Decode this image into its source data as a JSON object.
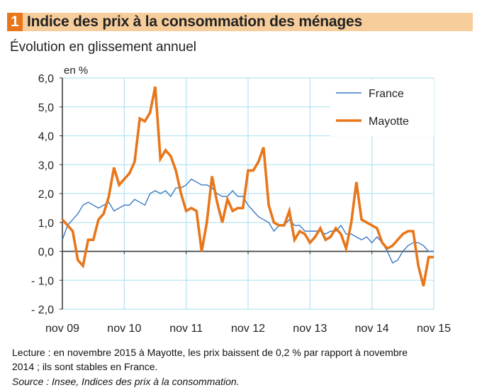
{
  "header": {
    "number": "1",
    "title": "Indice des prix à la consommation des ménages",
    "subtitle": "Évolution en glissement annuel"
  },
  "footer": {
    "lecture_line1": "Lecture : en novembre 2015 à Mayotte, les prix baissent de 0,2 % par rapport à novembre",
    "lecture_line2": "2014 ; ils sont stables  en France.",
    "source": "Source : Insee, Indices des prix à la consommation."
  },
  "chart_data": {
    "type": "line",
    "title": "Indice des prix à la consommation des ménages",
    "subtitle": "Évolution en glissement annuel",
    "ylabel": "en %",
    "xlabel": "",
    "ylim": [
      -2.0,
      6.0
    ],
    "yticks": [
      6.0,
      5.0,
      4.0,
      3.0,
      2.0,
      1.0,
      0.0,
      -1.0,
      -2.0
    ],
    "ytick_labels": [
      "6,0",
      "5,0",
      "4,0",
      "3,0",
      "2,0",
      "1,0",
      "0,0",
      "- 1,0",
      "- 2,0"
    ],
    "x_tick_labels": [
      "nov 09",
      "nov 10",
      "nov 11",
      "nov 12",
      "nov 13",
      "nov 14",
      "nov 15"
    ],
    "x_range_months": [
      0,
      72
    ],
    "grid": true,
    "legend_position": "top-right",
    "colors": {
      "France": "#3c78c3",
      "Mayotte": "#e8761a",
      "grid": "#b8e4f2",
      "axis": "#333333"
    },
    "series": [
      {
        "name": "France",
        "values": [
          0.4,
          0.9,
          1.1,
          1.3,
          1.6,
          1.7,
          1.6,
          1.5,
          1.6,
          1.7,
          1.4,
          1.5,
          1.6,
          1.6,
          1.8,
          1.7,
          1.6,
          2.0,
          2.1,
          2.0,
          2.1,
          1.9,
          2.2,
          2.2,
          2.3,
          2.5,
          2.4,
          2.3,
          2.3,
          2.2,
          2.0,
          1.9,
          1.9,
          2.1,
          1.9,
          1.9,
          1.6,
          1.4,
          1.2,
          1.1,
          1.0,
          0.7,
          0.9,
          0.9,
          1.1,
          0.9,
          0.9,
          0.7,
          0.7,
          0.7,
          0.7,
          0.6,
          0.7,
          0.7,
          0.9,
          0.6,
          0.6,
          0.5,
          0.4,
          0.5,
          0.3,
          0.5,
          0.3,
          0.0,
          -0.4,
          -0.3,
          0.0,
          0.2,
          0.3,
          0.3,
          0.2,
          0.0,
          0.0
        ]
      },
      {
        "name": "Mayotte",
        "values": [
          1.1,
          0.9,
          0.7,
          -0.3,
          -0.5,
          0.4,
          0.4,
          1.1,
          1.3,
          1.9,
          2.9,
          2.3,
          2.5,
          2.7,
          3.1,
          4.6,
          4.5,
          4.8,
          5.7,
          3.2,
          3.5,
          3.3,
          2.8,
          2.0,
          1.4,
          1.5,
          1.4,
          0.0,
          1.0,
          2.6,
          1.7,
          1.0,
          1.8,
          1.4,
          1.5,
          1.5,
          2.8,
          2.8,
          3.1,
          3.6,
          1.6,
          1.0,
          0.9,
          0.9,
          1.4,
          0.4,
          0.7,
          0.6,
          0.3,
          0.5,
          0.8,
          0.4,
          0.5,
          0.8,
          0.6,
          0.1,
          1.0,
          2.4,
          1.1,
          1.0,
          0.9,
          0.8,
          0.3,
          0.1,
          0.2,
          0.4,
          0.6,
          0.7,
          0.7,
          -0.5,
          -1.2,
          -0.2,
          -0.2
        ]
      }
    ]
  }
}
